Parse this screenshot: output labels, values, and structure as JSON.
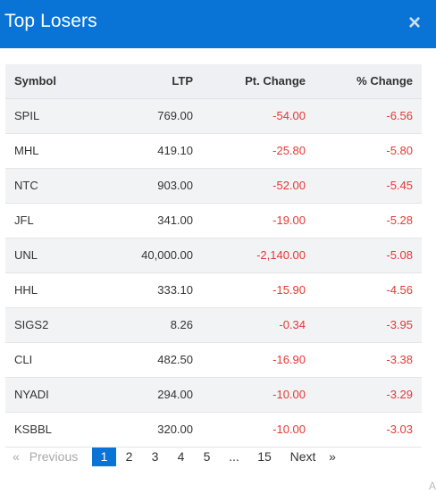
{
  "header": {
    "title": "Top Losers",
    "close_label": "×"
  },
  "table": {
    "columns": [
      "Symbol",
      "LTP",
      "Pt. Change",
      "% Change"
    ],
    "rows": [
      [
        "SPIL",
        "769.00",
        "-54.00",
        "-6.56"
      ],
      [
        "MHL",
        "419.10",
        "-25.80",
        "-5.80"
      ],
      [
        "NTC",
        "903.00",
        "-52.00",
        "-5.45"
      ],
      [
        "JFL",
        "341.00",
        "-19.00",
        "-5.28"
      ],
      [
        "UNL",
        "40,000.00",
        "-2,140.00",
        "-5.08"
      ],
      [
        "HHL",
        "333.10",
        "-15.90",
        "-4.56"
      ],
      [
        "SIGS2",
        "8.26",
        "-0.34",
        "-3.95"
      ],
      [
        "CLI",
        "482.50",
        "-16.90",
        "-3.38"
      ],
      [
        "NYADI",
        "294.00",
        "-10.00",
        "-3.29"
      ],
      [
        "KSBBL",
        "320.00",
        "-10.00",
        "-3.03"
      ]
    ]
  },
  "pagination": {
    "first_label": "«",
    "prev_label": "Previous",
    "pages": [
      "1",
      "2",
      "3",
      "4",
      "5",
      "...",
      "15"
    ],
    "current_page": "1",
    "next_label": "Next",
    "last_label": "»"
  },
  "corner_text": "A"
}
